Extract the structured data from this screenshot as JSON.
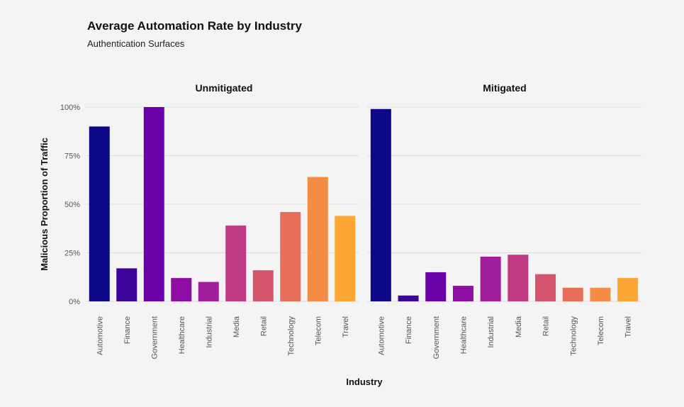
{
  "chart_data": {
    "type": "bar",
    "title": "Average Automation Rate by Industry",
    "subtitle": "Authentication Surfaces",
    "xlabel": "Industry",
    "ylabel": "Malicious Proportion of Traffic",
    "ylim": [
      0,
      100
    ],
    "yticks": [
      "0%",
      "25%",
      "50%",
      "75%",
      "100%"
    ],
    "grid": true,
    "categories": [
      "Automotive",
      "Finance",
      "Government",
      "Healthcare",
      "Industrial",
      "Media",
      "Retail",
      "Technology",
      "Telecom",
      "Travel"
    ],
    "colors": [
      "#0d0887",
      "#3d049b",
      "#6a00a8",
      "#8f0da4",
      "#a01e9a",
      "#c03a83",
      "#d5546e",
      "#e76f5a",
      "#f58c46",
      "#fca636"
    ],
    "panels": [
      {
        "name": "Unmitigated",
        "values": [
          90,
          17,
          100,
          12,
          10,
          39,
          16,
          46,
          64,
          44
        ]
      },
      {
        "name": "Mitigated",
        "values": [
          99,
          3,
          15,
          8,
          23,
          24,
          14,
          7,
          7,
          12
        ]
      }
    ]
  }
}
